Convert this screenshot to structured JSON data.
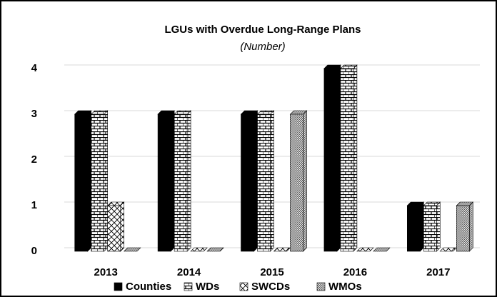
{
  "chart_data": {
    "type": "bar",
    "title": "LGUs with Overdue Long-Range Plans",
    "subtitle": "(Number)",
    "categories": [
      "2013",
      "2014",
      "2015",
      "2016",
      "2017"
    ],
    "series": [
      {
        "name": "Counties",
        "color": "#000000",
        "values": [
          3,
          3,
          3,
          4,
          1
        ]
      },
      {
        "name": "WDs",
        "color": "#000000",
        "values": [
          3,
          3,
          3,
          4,
          1
        ]
      },
      {
        "name": "SWCDs",
        "color": "#000000",
        "values": [
          1,
          0,
          0,
          0,
          0
        ]
      },
      {
        "name": "WMOs",
        "color": "#555555",
        "values": [
          0,
          0,
          3,
          0,
          1
        ]
      }
    ],
    "ylim": [
      0,
      4
    ],
    "yticks": [
      0,
      1,
      2,
      3,
      4
    ],
    "grid": true,
    "legend": "bottom"
  }
}
